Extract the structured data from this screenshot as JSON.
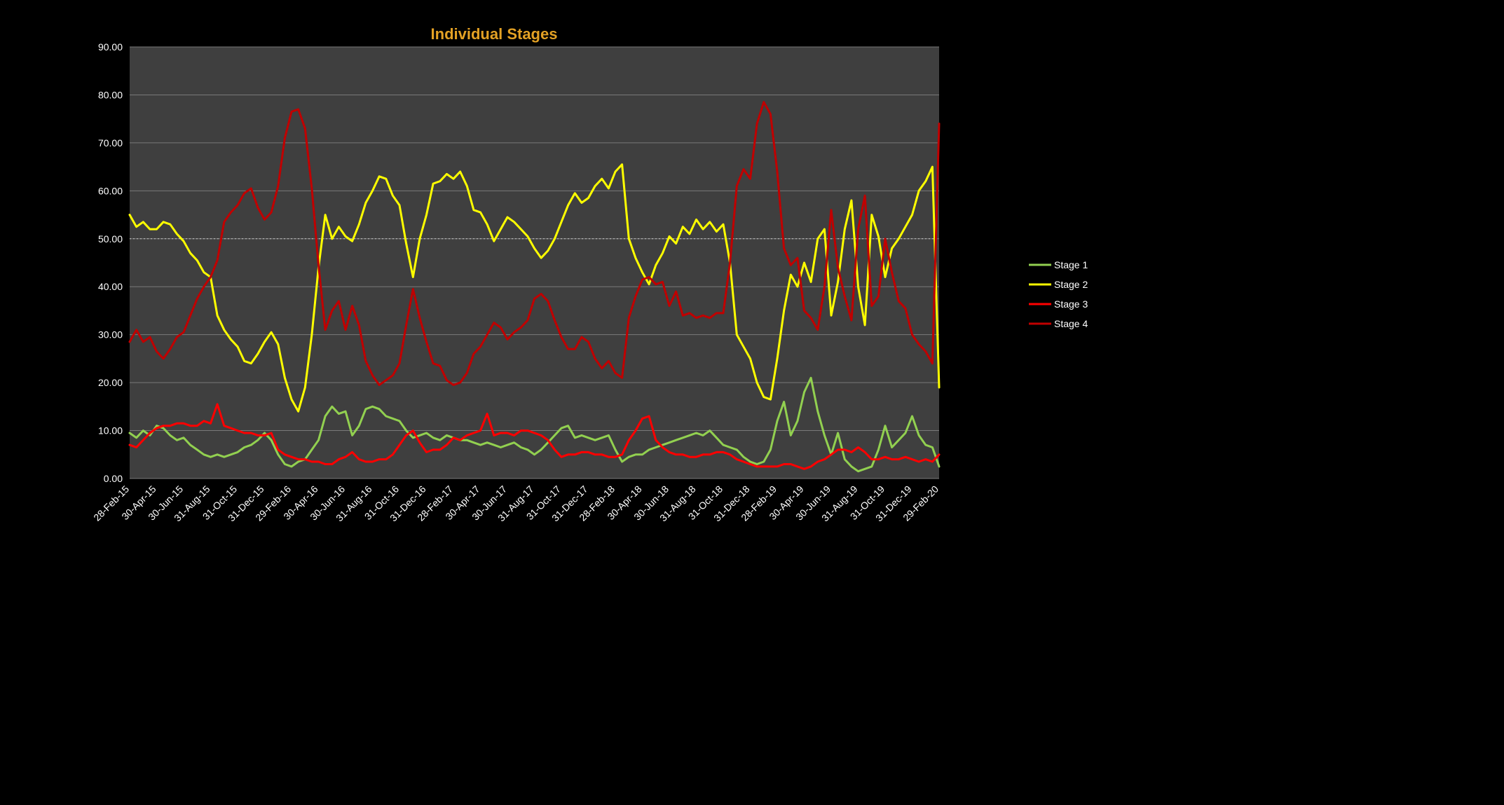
{
  "title": "Individual Stages",
  "colors": {
    "background": "#000000",
    "plot_background": "#3F3F3F",
    "gridline": "#7A7A7A",
    "reference_line": "#C8C8C8",
    "axis_text": "#FFFFFF",
    "title_text": "#E3A124"
  },
  "chart_data": {
    "type": "line",
    "title": "Individual Stages",
    "xlabel": "",
    "ylabel": "",
    "ylim": [
      0,
      90
    ],
    "y_tick_step": 10,
    "y_tick_labels": [
      "0.00",
      "10.00",
      "20.00",
      "30.00",
      "40.00",
      "50.00",
      "60.00",
      "70.00",
      "80.00",
      "90.00"
    ],
    "x_tick_labels": [
      "28-Feb-15",
      "30-Apr-15",
      "30-Jun-15",
      "31-Aug-15",
      "31-Oct-15",
      "31-Dec-15",
      "29-Feb-16",
      "30-Apr-16",
      "30-Jun-16",
      "31-Aug-16",
      "31-Oct-16",
      "31-Dec-16",
      "28-Feb-17",
      "30-Apr-17",
      "30-Jun-17",
      "31-Aug-17",
      "31-Oct-17",
      "31-Dec-17",
      "28-Feb-18",
      "30-Apr-18",
      "30-Jun-18",
      "31-Aug-18",
      "31-Oct-18",
      "31-Dec-18",
      "28-Feb-19",
      "30-Apr-19",
      "30-Jun-19",
      "31-Aug-19",
      "31-Oct-19",
      "31-Dec-19",
      "29-Feb-20"
    ],
    "points_per_x_tick": 4,
    "grid": "horizontal",
    "dotted_reference_line_y": 50,
    "legend_position": "right",
    "legend_entries": [
      "Stage 1",
      "Stage 2",
      "Stage 3",
      "Stage 4"
    ],
    "series": [
      {
        "name": "Stage 1",
        "color": "#92D050",
        "values": [
          9.5,
          8.5,
          10.0,
          9.0,
          11.0,
          10.5,
          9.0,
          8.0,
          8.5,
          7.0,
          6.0,
          5.0,
          4.5,
          5.0,
          4.5,
          5.0,
          5.5,
          6.5,
          7.0,
          8.0,
          9.5,
          8.0,
          5.0,
          3.0,
          2.5,
          3.5,
          4.0,
          6.0,
          8.0,
          13.0,
          15.0,
          13.5,
          14.0,
          9.0,
          11.0,
          14.5,
          15.0,
          14.5,
          13.0,
          12.5,
          12.0,
          10.0,
          8.5,
          9.0,
          9.5,
          8.5,
          8.0,
          9.0,
          8.5,
          8.0,
          8.0,
          7.5,
          7.0,
          7.5,
          7.0,
          6.5,
          7.0,
          7.5,
          6.5,
          6.0,
          5.0,
          6.0,
          7.5,
          9.0,
          10.5,
          11.0,
          8.5,
          9.0,
          8.5,
          8.0,
          8.5,
          9.0,
          6.0,
          3.5,
          4.5,
          5.0,
          5.0,
          6.0,
          6.5,
          7.0,
          7.5,
          8.0,
          8.5,
          9.0,
          9.5,
          9.0,
          10.0,
          8.5,
          7.0,
          6.5,
          6.0,
          4.5,
          3.5,
          3.0,
          3.5,
          6.0,
          12.0,
          16.0,
          9.0,
          12.0,
          18.0,
          21.0,
          14.0,
          9.0,
          5.0,
          9.5,
          4.0,
          2.5,
          1.5,
          2.0,
          2.5,
          6.0,
          11.0,
          6.5,
          8.0,
          9.5,
          13.0,
          9.0,
          7.0,
          6.5,
          2.5
        ]
      },
      {
        "name": "Stage 2",
        "color": "#FFFF00",
        "values": [
          55.0,
          52.5,
          53.5,
          52.0,
          52.0,
          53.5,
          53.0,
          51.0,
          49.5,
          47.0,
          45.5,
          43.0,
          42.0,
          34.0,
          31.0,
          29.0,
          27.5,
          24.5,
          24.0,
          26.0,
          28.5,
          30.5,
          28.0,
          21.0,
          16.5,
          14.0,
          19.0,
          30.0,
          44.0,
          55.0,
          50.0,
          52.5,
          50.5,
          49.5,
          53.0,
          57.5,
          60.0,
          63.0,
          62.5,
          59.0,
          57.0,
          49.0,
          42.0,
          50.0,
          55.0,
          61.5,
          62.0,
          63.5,
          62.5,
          64.0,
          61.0,
          56.0,
          55.5,
          53.0,
          49.5,
          52.0,
          54.5,
          53.5,
          52.0,
          50.5,
          48.0,
          46.0,
          47.5,
          50.0,
          53.5,
          57.0,
          59.5,
          57.5,
          58.5,
          61.0,
          62.5,
          60.5,
          64.0,
          65.5,
          50.0,
          46.0,
          43.0,
          40.5,
          44.5,
          47.0,
          50.5,
          49.0,
          52.5,
          51.0,
          54.0,
          52.0,
          53.5,
          51.5,
          53.0,
          45.0,
          30.0,
          27.5,
          25.0,
          20.0,
          17.0,
          16.5,
          25.0,
          35.0,
          42.5,
          40.0,
          45.0,
          41.0,
          50.0,
          52.0,
          34.0,
          41.0,
          52.0,
          58.0,
          40.0,
          32.0,
          55.0,
          50.5,
          42.0,
          48.0,
          50.0,
          52.5,
          55.0,
          60.0,
          62.0,
          65.0,
          19.0
        ]
      },
      {
        "name": "Stage 3",
        "color": "#FF0000",
        "values": [
          7.0,
          6.5,
          8.0,
          9.5,
          10.5,
          11.0,
          11.0,
          11.5,
          11.5,
          11.0,
          11.0,
          12.0,
          11.5,
          15.5,
          11.0,
          10.5,
          10.0,
          9.5,
          9.5,
          9.0,
          9.0,
          9.5,
          6.0,
          5.0,
          4.5,
          4.0,
          4.0,
          3.5,
          3.5,
          3.0,
          3.0,
          4.0,
          4.5,
          5.5,
          4.0,
          3.5,
          3.5,
          4.0,
          4.0,
          5.0,
          7.0,
          9.0,
          10.0,
          7.5,
          5.5,
          6.0,
          6.0,
          7.0,
          8.5,
          8.0,
          9.0,
          9.5,
          10.0,
          13.5,
          9.0,
          9.5,
          9.5,
          9.0,
          10.0,
          10.0,
          9.5,
          9.0,
          8.0,
          6.0,
          4.5,
          5.0,
          5.0,
          5.5,
          5.5,
          5.0,
          5.0,
          4.5,
          4.5,
          5.0,
          8.0,
          10.0,
          12.5,
          13.0,
          8.0,
          6.5,
          5.5,
          5.0,
          5.0,
          4.5,
          4.5,
          5.0,
          5.0,
          5.5,
          5.5,
          5.0,
          4.0,
          3.5,
          3.0,
          2.5,
          2.5,
          2.5,
          2.5,
          3.0,
          3.0,
          2.5,
          2.0,
          2.5,
          3.5,
          4.0,
          5.0,
          6.0,
          6.0,
          5.5,
          6.5,
          5.5,
          4.0,
          4.0,
          4.5,
          4.0,
          4.0,
          4.5,
          4.0,
          3.5,
          4.0,
          3.5,
          5.0
        ]
      },
      {
        "name": "Stage 4",
        "color": "#C00000",
        "values": [
          28.5,
          31.0,
          28.5,
          29.5,
          26.5,
          25.0,
          27.0,
          29.5,
          30.5,
          34.0,
          37.5,
          40.0,
          42.0,
          45.5,
          53.5,
          55.5,
          57.0,
          59.5,
          60.5,
          56.5,
          54.0,
          55.5,
          61.0,
          71.0,
          76.5,
          77.0,
          73.0,
          60.5,
          44.5,
          31.0,
          35.0,
          37.0,
          31.0,
          36.0,
          32.0,
          24.5,
          21.5,
          19.5,
          20.5,
          21.5,
          24.0,
          32.0,
          39.5,
          33.5,
          28.5,
          24.0,
          23.5,
          20.5,
          19.5,
          20.0,
          22.0,
          26.0,
          27.5,
          30.0,
          32.5,
          31.5,
          29.0,
          30.5,
          31.5,
          33.0,
          37.5,
          38.5,
          37.0,
          33.0,
          29.5,
          27.0,
          27.0,
          29.5,
          28.5,
          25.0,
          23.0,
          24.5,
          22.0,
          21.0,
          33.5,
          38.0,
          41.5,
          42.0,
          40.5,
          41.0,
          36.0,
          39.0,
          34.0,
          34.5,
          33.5,
          34.0,
          33.5,
          34.5,
          34.5,
          45.0,
          61.0,
          64.5,
          62.5,
          74.0,
          78.5,
          76.0,
          64.0,
          48.0,
          44.5,
          46.0,
          35.0,
          33.5,
          31.0,
          40.0,
          56.0,
          44.0,
          38.0,
          33.0,
          52.0,
          59.0,
          36.0,
          38.0,
          50.0,
          43.0,
          37.0,
          35.5,
          30.0,
          28.0,
          26.5,
          24.0,
          74.0
        ]
      }
    ]
  }
}
